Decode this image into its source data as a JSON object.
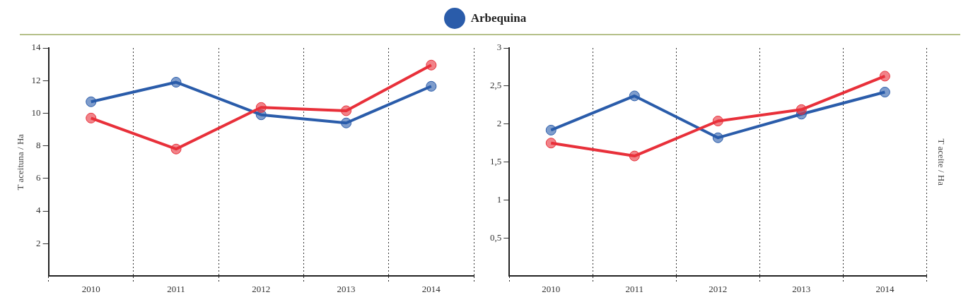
{
  "chart_data": [
    {
      "type": "line",
      "ylabel": "T aceituna / Ha",
      "categories": [
        "2010",
        "2011",
        "2012",
        "2013",
        "2014"
      ],
      "series": [
        {
          "color": "#e8303a",
          "values": [
            9.7,
            7.8,
            10.35,
            10.15,
            12.95
          ]
        },
        {
          "name": "Arbequina",
          "color": "#2a5caa",
          "values": [
            10.7,
            11.9,
            9.9,
            9.4,
            11.65
          ]
        }
      ],
      "ylim": [
        0,
        14
      ],
      "yticks": [
        2,
        4,
        6,
        8,
        10,
        12,
        14
      ],
      "grid": "x",
      "legend": "top",
      "marker": "circle"
    },
    {
      "type": "line",
      "ylabel": "T aceite / Ha",
      "categories": [
        "2010",
        "2011",
        "2012",
        "2013",
        "2014"
      ],
      "series": [
        {
          "color": "#e8303a",
          "values": [
            1.75,
            1.58,
            2.04,
            2.19,
            2.63
          ]
        },
        {
          "color": "#2a5caa",
          "values": [
            1.92,
            2.37,
            1.82,
            2.13,
            2.42
          ]
        }
      ],
      "ylim": [
        0,
        3
      ],
      "yticks": [
        {
          "value": 0.5,
          "label": "0,5"
        },
        1,
        {
          "value": 1.5,
          "label": "1,5"
        },
        2,
        {
          "value": 2.5,
          "label": "2,5"
        },
        3
      ],
      "grid": "x",
      "marker": "circle"
    }
  ]
}
